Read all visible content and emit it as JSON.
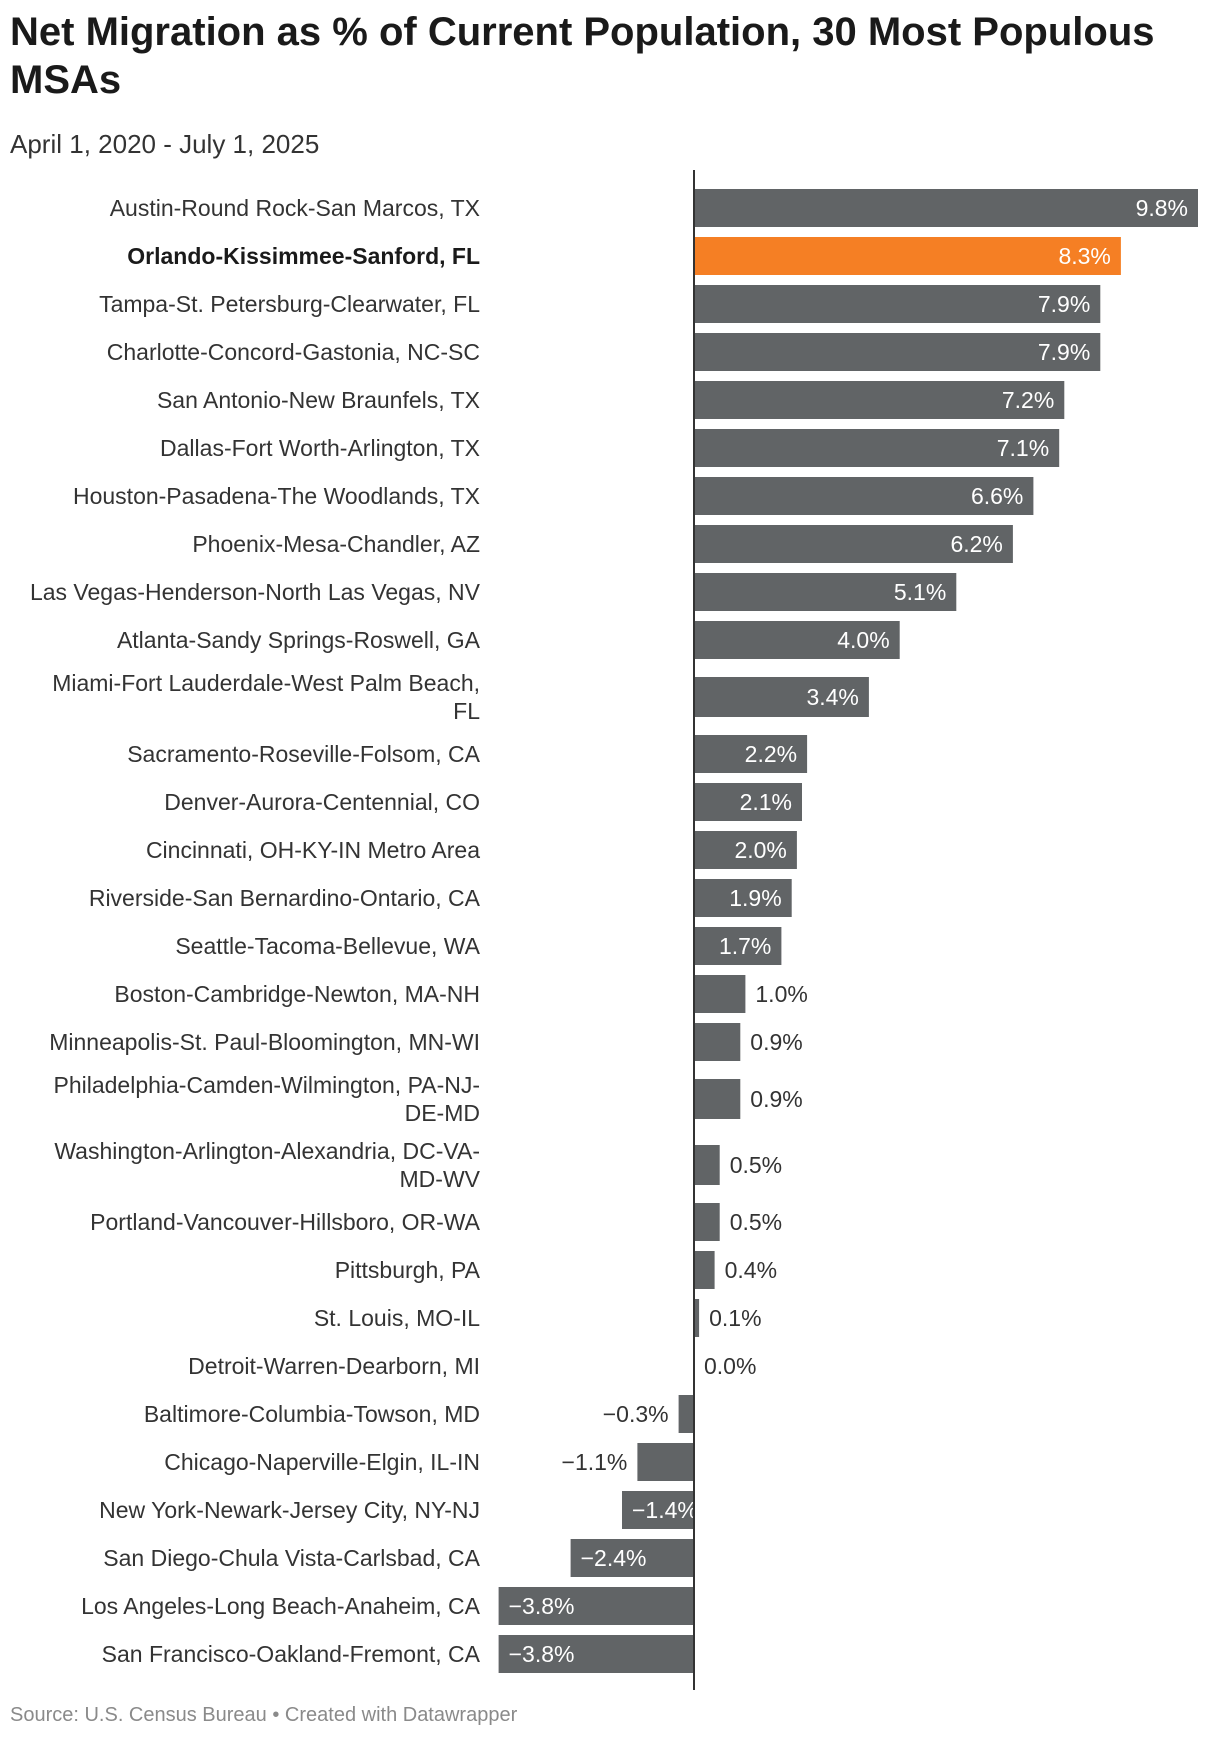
{
  "title": "Net Migration as % of Current Population, 30 Most Populous MSAs",
  "subtitle": "April 1, 2020 - July 1, 2025",
  "footer": "Source: U.S. Census Bureau • Created with Datawrapper",
  "colors": {
    "bar": "#616466",
    "highlight": "#f57f24",
    "axis": "#333333"
  },
  "chart_data": {
    "type": "bar",
    "orientation": "horizontal",
    "title": "Net Migration as % of Current Population, 30 Most Populous MSAs",
    "subtitle": "April 1, 2020 - July 1, 2025",
    "unit": "%",
    "highlight": "Orlando-Kissimmee-Sanford, FL",
    "categories": [
      "Austin-Round Rock-San Marcos, TX",
      "Orlando-Kissimmee-Sanford, FL",
      "Tampa-St. Petersburg-Clearwater, FL",
      "Charlotte-Concord-Gastonia, NC-SC",
      "San Antonio-New Braunfels, TX",
      "Dallas-Fort Worth-Arlington, TX",
      "Houston-Pasadena-The Woodlands, TX",
      "Phoenix-Mesa-Chandler, AZ",
      "Las Vegas-Henderson-North Las Vegas, NV",
      "Atlanta-Sandy Springs-Roswell, GA",
      "Miami-Fort Lauderdale-West Palm Beach, FL",
      "Sacramento-Roseville-Folsom, CA",
      "Denver-Aurora-Centennial, CO",
      "Cincinnati, OH-KY-IN Metro Area",
      "Riverside-San Bernardino-Ontario, CA",
      "Seattle-Tacoma-Bellevue, WA",
      "Boston-Cambridge-Newton, MA-NH",
      "Minneapolis-St. Paul-Bloomington, MN-WI",
      "Philadelphia-Camden-Wilmington, PA-NJ-DE-MD",
      "Washington-Arlington-Alexandria, DC-VA-MD-WV",
      "Portland-Vancouver-Hillsboro, OR-WA",
      "Pittsburgh, PA",
      "St. Louis, MO-IL",
      "Detroit-Warren-Dearborn, MI",
      "Baltimore-Columbia-Towson, MD",
      "Chicago-Naperville-Elgin, IL-IN",
      "New York-Newark-Jersey City, NY-NJ",
      "San Diego-Chula Vista-Carlsbad, CA",
      "Los Angeles-Long Beach-Anaheim, CA",
      "San Francisco-Oakland-Fremont, CA"
    ],
    "values": [
      9.8,
      8.3,
      7.9,
      7.9,
      7.2,
      7.1,
      6.6,
      6.2,
      5.1,
      4.0,
      3.4,
      2.2,
      2.1,
      2.0,
      1.9,
      1.7,
      1.0,
      0.9,
      0.9,
      0.5,
      0.5,
      0.4,
      0.1,
      0.0,
      -0.3,
      -1.1,
      -1.4,
      -2.4,
      -3.8,
      -3.8
    ],
    "value_labels": [
      "9.8%",
      "8.3%",
      "7.9%",
      "7.9%",
      "7.2%",
      "7.1%",
      "6.6%",
      "6.2%",
      "5.1%",
      "4.0%",
      "3.4%",
      "2.2%",
      "2.1%",
      "2.0%",
      "1.9%",
      "1.7%",
      "1.0%",
      "0.9%",
      "0.9%",
      "0.5%",
      "0.5%",
      "0.4%",
      "0.1%",
      "0.0%",
      "−0.3%",
      "−1.1%",
      "−1.4%",
      "−2.4%",
      "−3.8%",
      "−3.8%"
    ],
    "xlim": [
      -3.8,
      9.8
    ]
  }
}
